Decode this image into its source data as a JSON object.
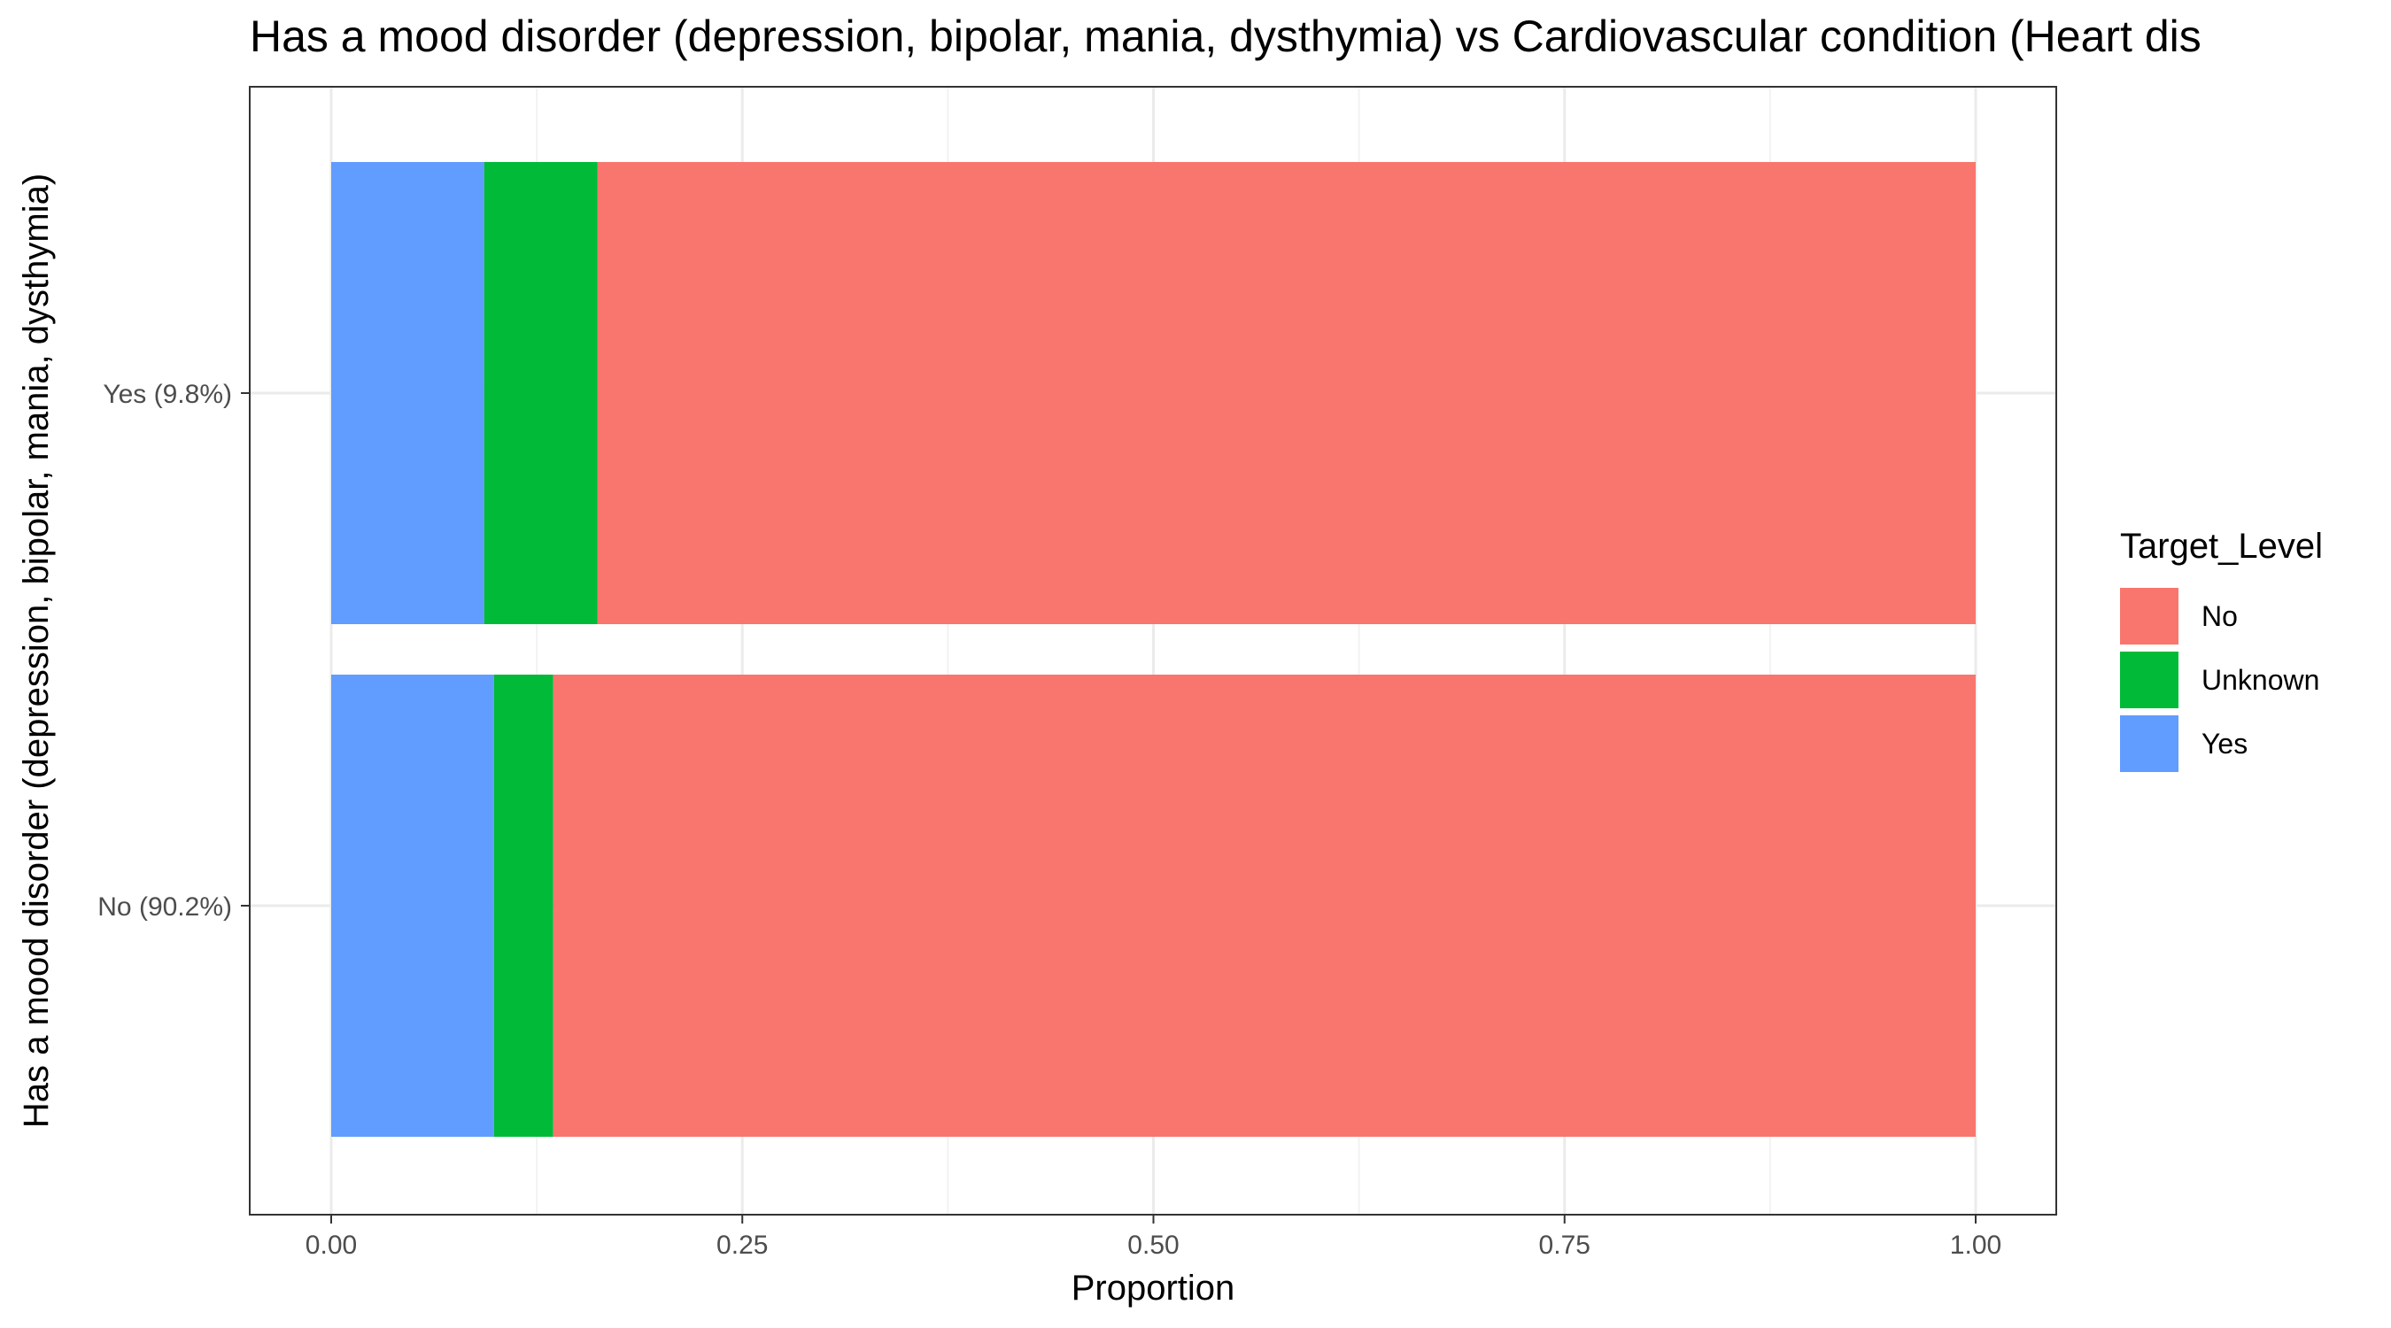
{
  "chart_data": {
    "type": "bar",
    "orientation": "horizontal",
    "stacked": true,
    "title": "Has a mood disorder (depression, bipolar, mania, dysthymia) vs Cardiovascular condition (Heart dis",
    "xlabel": "Proportion",
    "ylabel": "Has a mood disorder (depression, bipolar, mania, dysthymia)",
    "xlim": [
      0,
      1
    ],
    "x_ticks": [
      "0.00",
      "0.25",
      "0.50",
      "0.75",
      "1.00"
    ],
    "x_tick_values": [
      0,
      0.25,
      0.5,
      0.75,
      1
    ],
    "categories": [
      "Yes (9.8%)",
      "No (90.2%)"
    ],
    "series": [
      {
        "name": "Yes",
        "color": "#619CFF",
        "values": [
          0.093,
          0.099
        ]
      },
      {
        "name": "Unknown",
        "color": "#00BA38",
        "values": [
          0.069,
          0.036
        ]
      },
      {
        "name": "No",
        "color": "#F8766D",
        "values": [
          0.838,
          0.865
        ]
      }
    ],
    "legend": {
      "title": "Target_Level",
      "placement": "right",
      "entries": [
        {
          "label": "No",
          "color": "#F8766D"
        },
        {
          "label": "Unknown",
          "color": "#00BA38"
        },
        {
          "label": "Yes",
          "color": "#619CFF"
        }
      ]
    },
    "grid": true
  }
}
